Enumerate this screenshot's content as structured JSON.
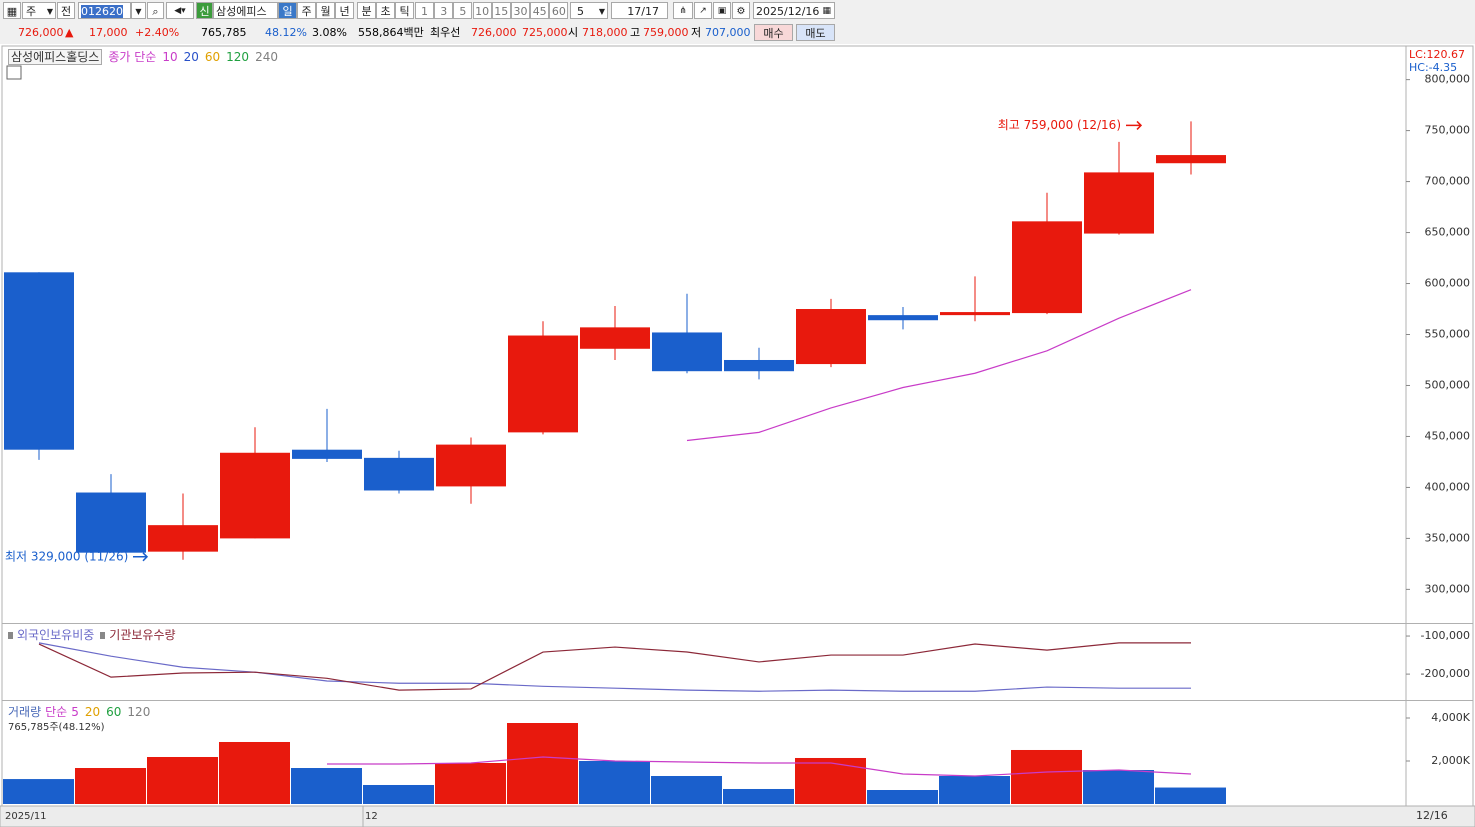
{
  "toolbar": {
    "row1": {
      "icon_grid": "▦",
      "period": "주",
      "all": "전",
      "code": "012620",
      "name": "삼성에피스",
      "new": "신",
      "intervals": [
        "일",
        "주",
        "월",
        "년",
        "분",
        "초",
        "틱"
      ],
      "minutes": [
        "1",
        "3",
        "5",
        "10",
        "15",
        "30",
        "45",
        "60"
      ],
      "count": "5",
      "page": "17/17",
      "date": "2025/12/16"
    },
    "row2": {
      "price": "726,000",
      "arrow": "▲",
      "change": "17,000",
      "rate": "+2.40%",
      "volume": "765,785",
      "volume_ratio": "48.12%",
      "turnover": "3.08%",
      "amount": "558,864백만",
      "best_label": "최우선",
      "ask": "726,000",
      "bid": "725,000",
      "open_label": "시",
      "open": "718,000",
      "high_label": "고",
      "high": "759,000",
      "low_label": "저",
      "low": "707,000",
      "buy": "매수",
      "sell": "매도"
    }
  },
  "chart_data": [
    {
      "type": "candlestick",
      "title": "삼성에피스홀딩스",
      "indicator": "종가 단순",
      "categories": [
        "2025/11",
        null,
        null,
        null,
        null,
        "12",
        null,
        null,
        null,
        null,
        null,
        null,
        null,
        null,
        null,
        null,
        "12/16"
      ],
      "open": [
        611000,
        395000,
        337000,
        350000,
        437000,
        429000,
        401000,
        454000,
        536000,
        552000,
        525000,
        521000,
        569000,
        569000,
        571000,
        649000,
        718000
      ],
      "high": [
        611000,
        413000,
        394000,
        459000,
        477000,
        436000,
        449000,
        563000,
        578000,
        590000,
        537000,
        585000,
        577000,
        607000,
        689000,
        739000,
        759000
      ],
      "low": [
        427000,
        336000,
        329000,
        350000,
        425000,
        394000,
        384000,
        452000,
        525000,
        512000,
        506000,
        518000,
        555000,
        563000,
        570000,
        648000,
        707000
      ],
      "close": [
        437000,
        336000,
        363000,
        434000,
        428000,
        397000,
        442000,
        549000,
        557000,
        514000,
        514000,
        575000,
        564000,
        572000,
        661000,
        709000,
        726000
      ],
      "up_color": "#e8190d",
      "down_color": "#1a5fcc",
      "series": [
        {
          "name": "10",
          "color": "#c83cc8",
          "values": [
            null,
            null,
            null,
            null,
            null,
            null,
            null,
            null,
            null,
            446000,
            454000,
            478000,
            498000,
            512000,
            534000,
            566000,
            594000
          ]
        },
        {
          "name": "20",
          "color": "#2850c8",
          "values": [
            null,
            null,
            null,
            null,
            null,
            null,
            null,
            null,
            null,
            null,
            null,
            null,
            null,
            null,
            null,
            null,
            null
          ]
        },
        {
          "name": "60",
          "color": "#e0a000",
          "values": [
            null,
            null,
            null,
            null,
            null,
            null,
            null,
            null,
            null,
            null,
            null,
            null,
            null,
            null,
            null,
            null,
            null
          ]
        },
        {
          "name": "120",
          "color": "#20a040",
          "values": [
            null,
            null,
            null,
            null,
            null,
            null,
            null,
            null,
            null,
            null,
            null,
            null,
            null,
            null,
            null,
            null,
            null
          ]
        },
        {
          "name": "240",
          "color": "#808080",
          "values": [
            null,
            null,
            null,
            null,
            null,
            null,
            null,
            null,
            null,
            null,
            null,
            null,
            null,
            null,
            null,
            null,
            null
          ]
        }
      ],
      "ylim": [
        268000,
        832000
      ],
      "yticks": [
        {
          "value": 300000,
          "label": "300,000"
        },
        {
          "value": 350000,
          "label": "350,000"
        },
        {
          "value": 400000,
          "label": "400,000"
        },
        {
          "value": 450000,
          "label": "450,000"
        },
        {
          "value": 500000,
          "label": "500,000"
        },
        {
          "value": 550000,
          "label": "550,000"
        },
        {
          "value": 600000,
          "label": "600,000"
        },
        {
          "value": 650000,
          "label": "650,000"
        },
        {
          "value": 700000,
          "label": "700,000"
        },
        {
          "value": 750000,
          "label": "750,000"
        },
        {
          "value": 800000,
          "label": "800,000"
        }
      ],
      "high_annotation": "최고 759,000 (12/16)",
      "low_annotation": "최저 329,000 (11/26)",
      "lc_label": "LC:120.67",
      "hc_label": "HC:-4.35"
    },
    {
      "type": "line",
      "series": [
        {
          "name": "외국인보유비중",
          "color": "#6a6ac8",
          "values": [
            -118000,
            -153000,
            -182000,
            -195000,
            -218000,
            -224000,
            -224000,
            -232000,
            -237000,
            -242000,
            -245000,
            -242000,
            -245000,
            -245000,
            -234000,
            -237000,
            -237000
          ]
        },
        {
          "name": "기관보유수량",
          "color": "#8c2838",
          "values": [
            -121000,
            -208000,
            -197000,
            -195000,
            -211000,
            -242000,
            -239000,
            -142000,
            -129000,
            -142000,
            -168000,
            -150000,
            -150000,
            -121000,
            -137000,
            -118000,
            -118000
          ]
        }
      ],
      "ylim": [
        -268000,
        -71000
      ],
      "yticks": [
        {
          "value": -100000,
          "label": "-100,000"
        },
        {
          "value": -200000,
          "label": "-200,000"
        }
      ]
    },
    {
      "type": "bar",
      "title": "거래량",
      "indicator": "단순",
      "values": [
        1160000,
        1674000,
        2186000,
        2884000,
        1674000,
        884000,
        1907000,
        3767000,
        2000000,
        1302000,
        698000,
        2140000,
        651000,
        1302000,
        2512000,
        1581000,
        765785
      ],
      "colors": [
        "#1a5fcc",
        "#e8190d",
        "#e8190d",
        "#e8190d",
        "#1a5fcc",
        "#1a5fcc",
        "#e8190d",
        "#e8190d",
        "#1a5fcc",
        "#1a5fcc",
        "#1a5fcc",
        "#e8190d",
        "#1a5fcc",
        "#1a5fcc",
        "#e8190d",
        "#1a5fcc",
        "#1a5fcc"
      ],
      "last_label": "765,785주(48.12%)",
      "series": [
        {
          "name": "5",
          "color": "#c83cc8",
          "values": [
            null,
            null,
            null,
            null,
            1860000,
            1860000,
            1907000,
            2186000,
            2000000,
            1953000,
            1907000,
            1907000,
            1395000,
            1302000,
            1488000,
            1581000,
            1395000
          ]
        },
        {
          "name": "20",
          "color": "#e0a000",
          "values": [
            null,
            null,
            null,
            null,
            null,
            null,
            null,
            null,
            null,
            null,
            null,
            null,
            null,
            null,
            null,
            null,
            null
          ]
        },
        {
          "name": "60",
          "color": "#20a040",
          "values": [
            null,
            null,
            null,
            null,
            null,
            null,
            null,
            null,
            null,
            null,
            null,
            null,
            null,
            null,
            null,
            null,
            null
          ]
        },
        {
          "name": "120",
          "color": "#808080",
          "values": [
            null,
            null,
            null,
            null,
            null,
            null,
            null,
            null,
            null,
            null,
            null,
            null,
            null,
            null,
            null,
            null,
            null
          ]
        }
      ],
      "ylim": [
        0,
        4744000
      ],
      "yticks": [
        {
          "value": 2000000,
          "label": "2,000K"
        },
        {
          "value": 4000000,
          "label": "4,000K"
        }
      ]
    }
  ]
}
